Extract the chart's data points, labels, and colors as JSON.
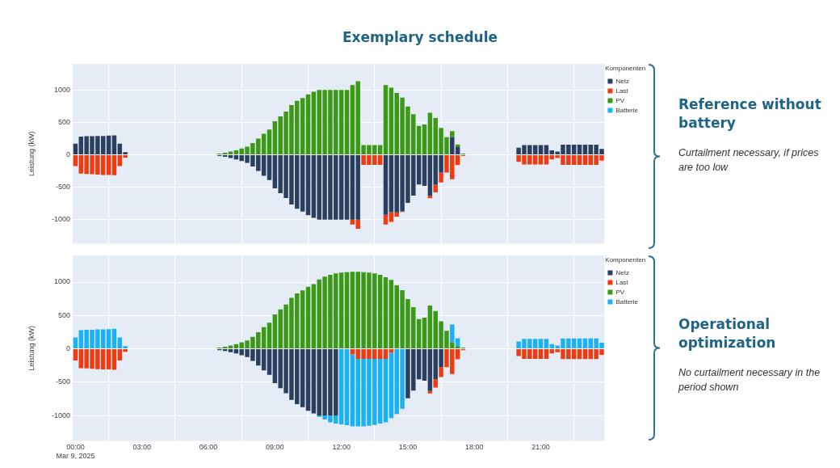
{
  "chart_data": [
    {
      "type": "bar",
      "title": "Exemplary schedule",
      "annotations": [
        "Reference without battery",
        "Curtailment necessary, if prices are too low"
      ],
      "ylabel": "Leistung (kW)",
      "legend_title": "Komponenten",
      "legend": "top right",
      "stacked": true,
      "grid": true,
      "tick_labels": "y",
      "x": [
        0,
        0.25,
        0.5,
        0.75,
        1,
        1.25,
        1.5,
        1.75,
        2,
        2.25,
        2.5,
        2.75,
        3,
        3.25,
        3.5,
        3.75,
        4,
        4.25,
        4.5,
        4.75,
        5,
        5.25,
        5.5,
        5.75,
        6,
        6.25,
        6.5,
        6.75,
        7,
        7.25,
        7.5,
        7.75,
        8,
        8.25,
        8.5,
        8.75,
        9,
        9.25,
        9.5,
        9.75,
        10,
        10.25,
        10.5,
        10.75,
        11,
        11.25,
        11.5,
        11.75,
        12,
        12.25,
        12.5,
        12.75,
        13,
        13.25,
        13.5,
        13.75,
        14,
        14.25,
        14.5,
        14.75,
        15,
        15.25,
        15.5,
        15.75,
        16,
        16.25,
        16.5,
        16.75,
        17,
        17.25,
        17.5,
        17.75,
        18,
        18.25,
        18.5,
        18.75,
        19,
        19.25,
        19.5,
        19.75,
        20,
        20.25,
        20.5,
        20.75,
        21,
        21.25,
        21.5,
        21.75,
        22,
        22.25,
        22.5,
        22.75,
        23,
        23.25,
        23.5,
        23.75
      ],
      "xlim": [
        -0.125,
        23.875
      ],
      "xticks": [
        0,
        3,
        6,
        9,
        12,
        15,
        18,
        21
      ],
      "ylim": [
        -1370,
        1400
      ],
      "yticks": [
        -1000,
        -500,
        0,
        500,
        1000
      ],
      "series": [
        {
          "name": "Netz",
          "color": "#2a3f5f",
          "values": [
            170,
            280,
            285,
            285,
            290,
            290,
            295,
            300,
            170,
            40,
            0,
            0,
            0,
            0,
            0,
            0,
            0,
            0,
            0,
            0,
            0,
            0,
            0,
            0,
            0,
            0,
            -20,
            -32,
            -50,
            -70,
            -97,
            -125,
            -180,
            -250,
            -325,
            -390,
            -515,
            -590,
            -665,
            -765,
            -830,
            -875,
            -930,
            -970,
            -1000,
            -1000,
            -1000,
            -1000,
            -1000,
            -1000,
            -1000,
            -1000,
            0,
            0,
            0,
            0,
            -923,
            -883,
            -885,
            -870,
            -741,
            -628,
            -458,
            -478,
            -632,
            -458,
            -275,
            0,
            271,
            117,
            0,
            0,
            0,
            0,
            0,
            0,
            0,
            0,
            0,
            0,
            110,
            150,
            150,
            150,
            150,
            150,
            70,
            50,
            155,
            155,
            155,
            155,
            155,
            155,
            155,
            90
          ]
        },
        {
          "name": "Last",
          "color": "#ef3b12",
          "values": [
            -175,
            -290,
            -295,
            -300,
            -305,
            -310,
            -310,
            -315,
            -175,
            -45,
            0,
            0,
            0,
            0,
            0,
            0,
            0,
            0,
            0,
            0,
            0,
            0,
            0,
            0,
            0,
            0,
            0,
            0,
            0,
            0,
            0,
            0,
            0,
            0,
            0,
            0,
            0,
            0,
            0,
            0,
            0,
            0,
            0,
            0,
            0,
            0,
            0,
            0,
            0,
            0,
            -73,
            -138,
            -155,
            -155,
            -155,
            -155,
            -150,
            -150,
            -67,
            -10,
            0,
            0,
            0,
            0,
            -36,
            -122,
            -150,
            -275,
            -377,
            -158,
            -20,
            0,
            0,
            0,
            0,
            0,
            0,
            0,
            0,
            0,
            -110,
            -150,
            -150,
            -150,
            -150,
            -150,
            -70,
            -50,
            -155,
            -155,
            -155,
            -155,
            -155,
            -155,
            -155,
            -90
          ]
        },
        {
          "name": "PV",
          "color": "#3a9a16",
          "values": [
            0,
            0,
            0,
            0,
            0,
            0,
            0,
            0,
            0,
            0,
            0,
            0,
            0,
            0,
            0,
            0,
            0,
            0,
            0,
            0,
            0,
            0,
            0,
            0,
            0,
            0,
            20,
            32,
            50,
            70,
            97,
            125,
            180,
            250,
            325,
            390,
            515,
            590,
            665,
            765,
            830,
            875,
            930,
            970,
            1000,
            1000,
            1000,
            1000,
            1000,
            1000,
            1073,
            1134,
            150,
            150,
            150,
            150,
            1073,
            1033,
            952,
            879,
            745,
            624,
            446,
            466,
            648,
            567,
            413,
            271,
            93,
            41,
            20,
            0,
            0,
            0,
            0,
            0,
            0,
            0,
            0,
            0,
            0,
            0,
            0,
            0,
            0,
            0,
            0,
            0,
            0,
            0,
            0,
            0,
            0,
            0,
            0,
            0
          ]
        },
        {
          "name": "Batterie",
          "color": "#1ab2f5",
          "values": [
            0,
            0,
            0,
            0,
            0,
            0,
            0,
            0,
            0,
            0,
            0,
            0,
            0,
            0,
            0,
            0,
            0,
            0,
            0,
            0,
            0,
            0,
            0,
            0,
            0,
            0,
            0,
            0,
            0,
            0,
            0,
            0,
            0,
            0,
            0,
            0,
            0,
            0,
            0,
            0,
            0,
            0,
            0,
            0,
            0,
            0,
            0,
            0,
            0,
            0,
            0,
            0,
            0,
            0,
            0,
            0,
            0,
            0,
            0,
            0,
            0,
            0,
            0,
            0,
            0,
            0,
            0,
            0,
            0,
            0,
            0,
            0,
            0,
            0,
            0,
            0,
            0,
            0,
            0,
            0,
            0,
            0,
            0,
            0,
            0,
            0,
            0,
            0,
            0,
            0,
            0,
            0,
            0,
            0,
            0,
            0
          ]
        }
      ]
    },
    {
      "type": "bar",
      "annotations": [
        "Operational optimization",
        "No curtailment necessary in the period shown"
      ],
      "ylabel": "Leistung (kW)",
      "legend_title": "Komponenten",
      "legend": "top right",
      "stacked": true,
      "grid": true,
      "x": [
        0,
        0.25,
        0.5,
        0.75,
        1,
        1.25,
        1.5,
        1.75,
        2,
        2.25,
        2.5,
        2.75,
        3,
        3.25,
        3.5,
        3.75,
        4,
        4.25,
        4.5,
        4.75,
        5,
        5.25,
        5.5,
        5.75,
        6,
        6.25,
        6.5,
        6.75,
        7,
        7.25,
        7.5,
        7.75,
        8,
        8.25,
        8.5,
        8.75,
        9,
        9.25,
        9.5,
        9.75,
        10,
        10.25,
        10.5,
        10.75,
        11,
        11.25,
        11.5,
        11.75,
        12,
        12.25,
        12.5,
        12.75,
        13,
        13.25,
        13.5,
        13.75,
        14,
        14.25,
        14.5,
        14.75,
        15,
        15.25,
        15.5,
        15.75,
        16,
        16.25,
        16.5,
        16.75,
        17,
        17.25,
        17.5,
        17.75,
        18,
        18.25,
        18.5,
        18.75,
        19,
        19.25,
        19.5,
        19.75,
        20,
        20.25,
        20.5,
        20.75,
        21,
        21.25,
        21.5,
        21.75,
        22,
        22.25,
        22.5,
        22.75,
        23,
        23.25,
        23.5,
        23.75
      ],
      "xlim": [
        -0.125,
        23.875
      ],
      "xticks": [
        {
          "value": 0,
          "label": "00:00\nMar 9, 2025"
        },
        {
          "value": 3,
          "label": "03:00"
        },
        {
          "value": 6,
          "label": "06:00"
        },
        {
          "value": 9,
          "label": "09:00"
        },
        {
          "value": 12,
          "label": "12:00"
        },
        {
          "value": 15,
          "label": "15:00"
        },
        {
          "value": 18,
          "label": "18:00"
        },
        {
          "value": 21,
          "label": "21:00"
        }
      ],
      "ylim": [
        -1380,
        1400
      ],
      "yticks": [
        -1000,
        -500,
        0,
        500,
        1000
      ],
      "series": [
        {
          "name": "Netz",
          "color": "#2a3f5f",
          "values": [
            0,
            0,
            0,
            0,
            0,
            0,
            0,
            0,
            0,
            0,
            0,
            0,
            0,
            0,
            0,
            0,
            0,
            0,
            0,
            0,
            0,
            0,
            0,
            0,
            0,
            0,
            -20,
            -32,
            -50,
            -70,
            -97,
            -125,
            -180,
            -250,
            -325,
            -390,
            -515,
            -590,
            -665,
            -765,
            -830,
            -875,
            -930,
            -970,
            -1000,
            -1000,
            -1000,
            -1000,
            0,
            0,
            0,
            0,
            0,
            0,
            0,
            0,
            0,
            0,
            0,
            0,
            -741,
            -628,
            -458,
            -478,
            -632,
            -458,
            -275,
            0,
            0,
            0,
            0,
            0,
            0,
            0,
            0,
            0,
            0,
            0,
            0,
            0,
            0,
            0,
            0,
            0,
            0,
            0,
            0,
            0,
            0,
            0,
            0,
            0,
            0,
            0,
            0,
            0
          ]
        },
        {
          "name": "Last",
          "color": "#ef3b12",
          "values": [
            -175,
            -290,
            -295,
            -300,
            -305,
            -310,
            -310,
            -315,
            -175,
            -45,
            0,
            0,
            0,
            0,
            0,
            0,
            0,
            0,
            0,
            0,
            0,
            0,
            0,
            0,
            0,
            0,
            0,
            0,
            0,
            0,
            0,
            0,
            0,
            0,
            0,
            0,
            0,
            0,
            0,
            0,
            0,
            0,
            0,
            0,
            0,
            0,
            0,
            0,
            null,
            null,
            -86,
            -150,
            -150,
            -150,
            -150,
            -150,
            -150,
            -60,
            0,
            0,
            0,
            0,
            0,
            0,
            -36,
            -122,
            -150,
            -275,
            -377,
            -158,
            -20,
            0,
            0,
            0,
            0,
            0,
            0,
            0,
            0,
            0,
            -110,
            -150,
            -150,
            -150,
            -150,
            -150,
            -70,
            -50,
            -155,
            -155,
            -155,
            -155,
            -155,
            -155,
            -155,
            -90
          ]
        },
        {
          "name": "PV",
          "color": "#3a9a16",
          "values": [
            0,
            0,
            0,
            0,
            0,
            0,
            0,
            0,
            0,
            0,
            0,
            0,
            0,
            0,
            0,
            0,
            0,
            0,
            0,
            0,
            0,
            0,
            0,
            0,
            0,
            0,
            20,
            32,
            50,
            70,
            97,
            125,
            180,
            250,
            325,
            390,
            515,
            590,
            665,
            765,
            830,
            875,
            930,
            970,
            1040,
            1081,
            1110,
            1130,
            1142,
            1150,
            1155,
            1155,
            1150,
            1142,
            1130,
            1110,
            1073,
            1033,
            952,
            879,
            745,
            624,
            446,
            466,
            648,
            567,
            413,
            271,
            93,
            41,
            20,
            0,
            0,
            0,
            0,
            0,
            0,
            0,
            0,
            0,
            0,
            0,
            0,
            0,
            0,
            0,
            0,
            0,
            0,
            0,
            0,
            0,
            0,
            0,
            0,
            0
          ]
        },
        {
          "name": "Batterie",
          "color": "#1ab2f5",
          "values": [
            170,
            280,
            285,
            285,
            290,
            290,
            295,
            300,
            170,
            40,
            0,
            0,
            0,
            0,
            0,
            0,
            0,
            0,
            0,
            0,
            0,
            0,
            0,
            0,
            0,
            0,
            0,
            0,
            0,
            0,
            0,
            0,
            0,
            0,
            0,
            0,
            0,
            0,
            0,
            0,
            0,
            0,
            0,
            0,
            -20,
            -61,
            -102,
            -122,
            -1132,
            -1145,
            -1077,
            -1013,
            -1013,
            -1005,
            -992,
            -972,
            -952,
            -980,
            -979,
            -898,
            0,
            0,
            0,
            0,
            0,
            0,
            0,
            0,
            271,
            117,
            0,
            0,
            0,
            0,
            0,
            0,
            0,
            0,
            0,
            0,
            110,
            150,
            150,
            150,
            150,
            150,
            70,
            50,
            155,
            155,
            155,
            155,
            155,
            155,
            155,
            90
          ]
        }
      ]
    }
  ]
}
